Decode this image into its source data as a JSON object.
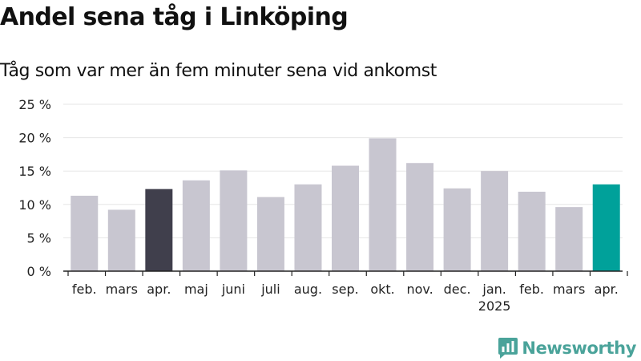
{
  "chart_data": {
    "type": "bar",
    "title": "Andel sena tåg i Linköping",
    "subtitle": "Tåg som var mer än fem minuter sena vid ankomst",
    "categories": [
      "feb.",
      "mars",
      "apr.",
      "maj",
      "juni",
      "juli",
      "aug.",
      "sep.",
      "okt.",
      "nov.",
      "dec.",
      "jan.",
      "feb.",
      "mars",
      "apr."
    ],
    "year_label": "2025",
    "year_label_under_index": 11,
    "values": [
      11.3,
      9.2,
      12.3,
      13.6,
      15.1,
      11.1,
      13.0,
      15.8,
      19.9,
      16.2,
      12.4,
      15.0,
      11.9,
      9.6,
      13.0
    ],
    "highlight_indices": [
      2,
      14
    ],
    "yticks": [
      0,
      5,
      10,
      15,
      20,
      25
    ],
    "ytick_suffix": " %",
    "ylim": [
      0,
      25
    ],
    "grid": true,
    "colors": {
      "default": "#c8c6d0",
      "highlight_previous": "#403f4c",
      "highlight_current": "#00a19a",
      "grid": "#e6e6e6",
      "axis": "#222222"
    }
  },
  "branding": {
    "logo_text": "Newsworthy",
    "logo_icon": "bar-chart-speech-bubble-icon",
    "logo_color": "#4aa39a"
  }
}
